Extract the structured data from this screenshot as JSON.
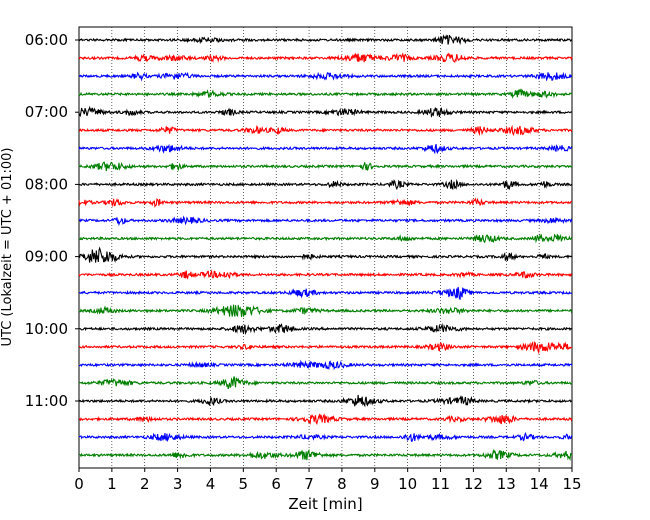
{
  "chart_data": {
    "type": "line",
    "title": "",
    "xlabel": "Zeit  [min]",
    "ylabel": "UTC (Lokalzeit = UTC + 01:00)",
    "xlim": [
      0,
      15
    ],
    "x_ticks": [
      "0",
      "1",
      "2",
      "3",
      "4",
      "5",
      "6",
      "7",
      "8",
      "9",
      "10",
      "11",
      "12",
      "13",
      "14",
      "15"
    ],
    "y_ticks": [
      "06:00",
      "07:00",
      "08:00",
      "09:00",
      "10:00",
      "11:00"
    ],
    "trace_start_times": [
      "06:00",
      "06:15",
      "06:30",
      "06:45",
      "07:00",
      "07:15",
      "07:30",
      "07:45",
      "08:00",
      "08:15",
      "08:30",
      "08:45",
      "09:00",
      "09:15",
      "09:30",
      "09:45",
      "10:00",
      "10:15",
      "10:30",
      "10:45",
      "11:00",
      "11:15",
      "11:30",
      "11:45"
    ],
    "trace_duration_min": 15,
    "trace_colors": [
      "#000000",
      "#ff0000",
      "#0000ff",
      "#007f00"
    ],
    "grid": "vertical dotted at each minute",
    "legend": "none"
  }
}
